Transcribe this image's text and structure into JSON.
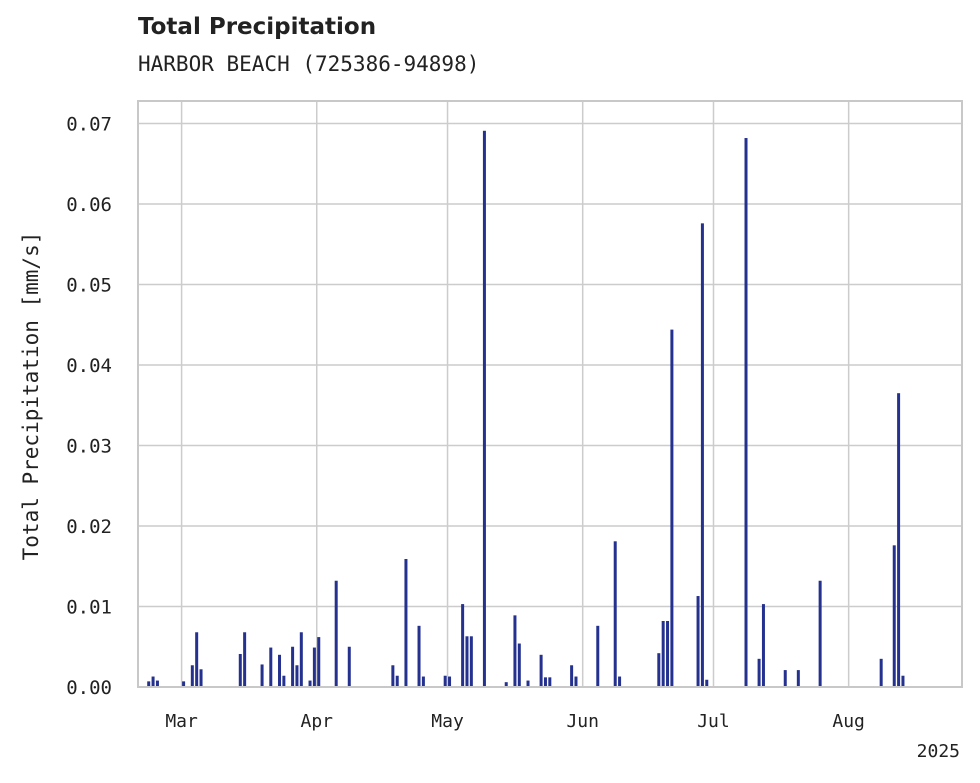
{
  "chart_data": {
    "type": "bar",
    "title": "Total Precipitation",
    "subtitle": "HARBOR BEACH (725386-94898)",
    "ylabel": "Total Precipitation [mm/s]",
    "xlabel": "",
    "ylim": [
      0,
      0.0728
    ],
    "xlim": [
      "2025-02-19",
      "2025-08-27"
    ],
    "yticks": [
      0,
      0.01,
      0.02,
      0.03,
      0.04,
      0.05,
      0.06,
      0.07
    ],
    "ytick_labels": [
      "0.00",
      "0.01",
      "0.02",
      "0.03",
      "0.04",
      "0.05",
      "0.06",
      "0.07"
    ],
    "xticks": [
      "2025-03-01",
      "2025-04-01",
      "2025-05-01",
      "2025-06-01",
      "2025-07-01",
      "2025-08-01"
    ],
    "xtick_labels": [
      "Mar",
      "Apr",
      "May",
      "Jun",
      "Jul",
      "Aug"
    ],
    "x_offset_label": "2025",
    "grid": true,
    "bar_color": "#24318f",
    "series": [
      {
        "x": [
          "2025-02-21",
          "2025-02-22",
          "2025-02-23",
          "2025-03-01",
          "2025-03-03",
          "2025-03-04",
          "2025-03-05",
          "2025-03-14",
          "2025-03-15",
          "2025-03-19",
          "2025-03-21",
          "2025-03-22",
          "2025-03-23",
          "2025-03-24",
          "2025-03-26",
          "2025-03-27",
          "2025-03-28",
          "2025-03-30",
          "2025-03-31",
          "2025-04-01",
          "2025-04-05",
          "2025-04-08",
          "2025-04-18",
          "2025-04-19",
          "2025-04-21",
          "2025-04-24",
          "2025-04-25",
          "2025-04-30",
          "2025-05-01",
          "2025-05-04",
          "2025-05-05",
          "2025-05-06",
          "2025-05-09",
          "2025-05-14",
          "2025-05-16",
          "2025-05-17",
          "2025-05-19",
          "2025-05-22",
          "2025-05-23",
          "2025-05-24",
          "2025-05-29",
          "2025-05-30",
          "2025-06-04",
          "2025-06-08",
          "2025-06-09",
          "2025-06-18",
          "2025-06-19",
          "2025-06-20",
          "2025-06-21",
          "2025-06-27",
          "2025-06-28",
          "2025-06-29",
          "2025-07-08",
          "2025-07-11",
          "2025-07-12",
          "2025-07-17",
          "2025-07-20",
          "2025-07-25",
          "2025-08-08",
          "2025-08-11",
          "2025-08-12",
          "2025-08-13"
        ],
        "values": [
          0.0007,
          0.0013,
          0.0008,
          0.0007,
          0.0027,
          0.0068,
          0.0022,
          0.0041,
          0.0068,
          0.0028,
          0.0049,
          0.0001,
          0.004,
          0.0014,
          0.005,
          0.0027,
          0.0068,
          0.0008,
          0.0049,
          0.0062,
          0.0132,
          0.005,
          0.0027,
          0.0014,
          0.0159,
          0.0076,
          0.0013,
          0.0014,
          0.0013,
          0.0103,
          0.0063,
          0.0063,
          0.0691,
          0.0006,
          0.0089,
          0.0054,
          0.0008,
          0.004,
          0.0012,
          0.0012,
          0.0027,
          0.0013,
          0.0076,
          0.0181,
          0.0013,
          0.0042,
          0.0082,
          0.0082,
          0.0444,
          0.0113,
          0.0576,
          0.0009,
          0.0682,
          0.0035,
          0.0103,
          0.0021,
          0.0021,
          0.0132,
          0.0035,
          0.0176,
          0.0365,
          0.0014
        ]
      }
    ]
  }
}
